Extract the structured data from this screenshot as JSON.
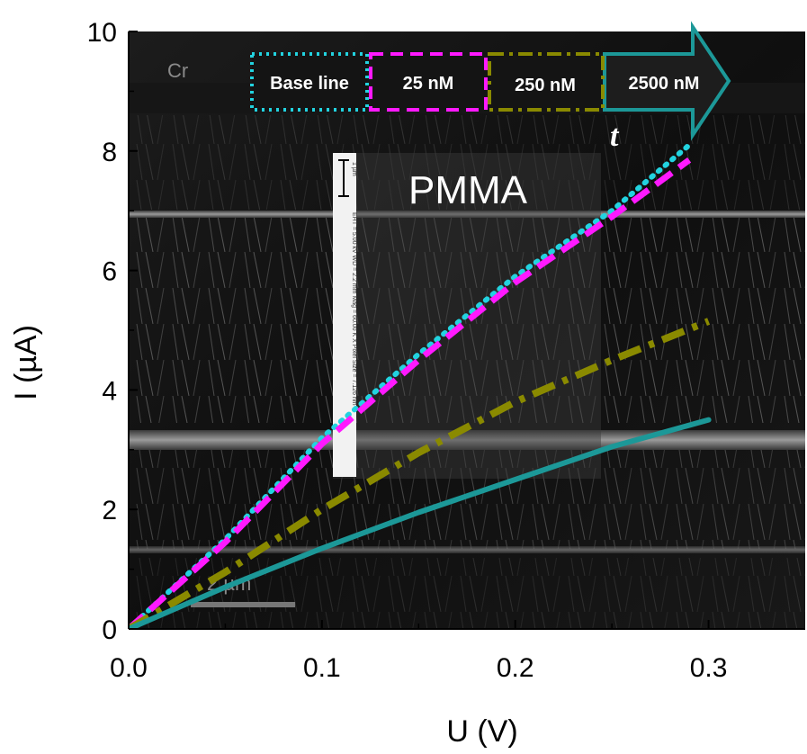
{
  "chart_data": {
    "type": "line",
    "xlabel": "U (V)",
    "ylabel": "I (µA)",
    "xlim": [
      0,
      0.35
    ],
    "ylim": [
      0,
      10
    ],
    "xticks": [
      "0.0",
      "0.1",
      "0.2",
      "0.3"
    ],
    "yticks": [
      "0",
      "2",
      "4",
      "6",
      "8",
      "10"
    ],
    "grid": false,
    "legend_position": "top",
    "series": [
      {
        "name": "Base line",
        "color": "#22d3e0",
        "style": "dotted",
        "x": [
          0,
          0.05,
          0.1,
          0.15,
          0.2,
          0.25,
          0.29
        ],
        "y": [
          0,
          1.5,
          3.2,
          4.6,
          5.9,
          7.0,
          8.1
        ]
      },
      {
        "name": "25 nM",
        "color": "#ff19ff",
        "style": "dashed",
        "x": [
          0,
          0.05,
          0.1,
          0.15,
          0.2,
          0.25,
          0.29
        ],
        "y": [
          0,
          1.45,
          3.1,
          4.5,
          5.8,
          6.9,
          7.85
        ]
      },
      {
        "name": "250 nM",
        "color": "#8a8a00",
        "style": "dashdot",
        "x": [
          0,
          0.05,
          0.1,
          0.15,
          0.2,
          0.25,
          0.3
        ],
        "y": [
          0,
          0.95,
          2.0,
          2.95,
          3.8,
          4.5,
          5.15
        ]
      },
      {
        "name": "2500 nM",
        "color": "#1c9898",
        "style": "solid",
        "x": [
          0,
          0.05,
          0.1,
          0.15,
          0.2,
          0.25,
          0.3
        ],
        "y": [
          0,
          0.7,
          1.35,
          1.95,
          2.5,
          3.05,
          3.5
        ]
      }
    ],
    "annotations": {
      "time_arrow_label": "t",
      "region_label": "PMMA",
      "electrode_label": "Cr",
      "scale_bar_label": "2 µm",
      "inset_scale_label": "1 µm",
      "inset_info": "EHT = 5.00 kV    WD = 2.2 mm    Mag = 60.00 K X    Pixel Size = 7.126 nm"
    }
  }
}
